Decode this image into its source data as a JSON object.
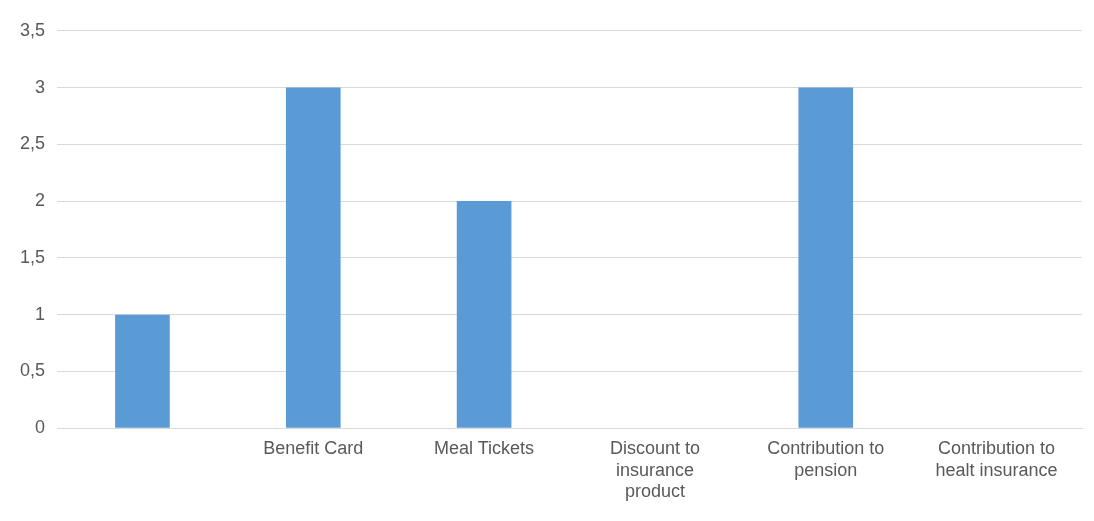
{
  "chart_data": {
    "type": "bar",
    "categories": [
      null,
      "Benefit Card",
      "Meal Tickets",
      "Discount to insurance product",
      "Contribution to pension",
      "Contribution to healt insurance"
    ],
    "values": [
      1,
      3,
      2,
      0,
      3,
      0
    ],
    "color": "#5b9bd5",
    "ylim": [
      0,
      3.5
    ],
    "yticks": [
      0,
      {
        "value": 0.5,
        "label": "0,5"
      },
      1,
      {
        "value": 1.5,
        "label": "1,5"
      },
      2,
      {
        "value": 2.5,
        "label": "2,5"
      },
      3,
      {
        "value": 3.5,
        "label": "3,5"
      }
    ],
    "grid": "y",
    "legend": false
  }
}
